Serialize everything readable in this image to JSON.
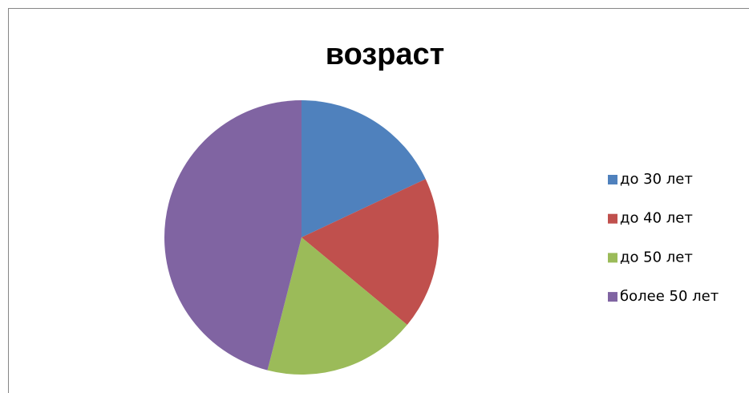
{
  "chart_data": {
    "type": "pie",
    "title": "возраст",
    "categories": [
      "до 30 лет",
      "до 40 лет",
      "до 50 лет",
      "более 50 лет"
    ],
    "values": [
      18,
      18,
      18,
      46
    ],
    "colors": [
      "#4f81bd",
      "#c0504d",
      "#9bbb59",
      "#8064a2"
    ],
    "legend": "right"
  }
}
